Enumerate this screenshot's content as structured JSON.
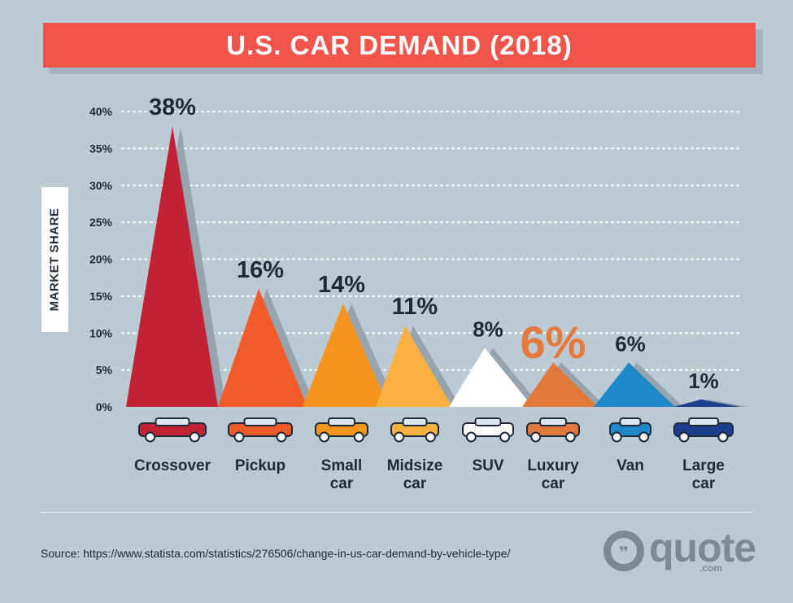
{
  "title": "U.S. CAR DEMAND (2018)",
  "chart_data": {
    "type": "area",
    "title": "U.S. CAR DEMAND (2018)",
    "ylabel": "MARKET SHARE",
    "ylim": [
      0,
      40
    ],
    "yticks": [
      "0%",
      "5%",
      "10%",
      "15%",
      "20%",
      "25%",
      "30%",
      "35%",
      "40%"
    ],
    "grid": true,
    "categories": [
      "Crossover",
      "Pickup",
      "Small car",
      "Midsize car",
      "SUV",
      "Luxury car",
      "Van",
      "Large car"
    ],
    "category_lines": [
      [
        "Crossover"
      ],
      [
        "Pickup"
      ],
      [
        "Small",
        "car"
      ],
      [
        "Midsize",
        "car"
      ],
      [
        "SUV"
      ],
      [
        "Luxury",
        "car"
      ],
      [
        "Van"
      ],
      [
        "Large",
        "car"
      ]
    ],
    "values": [
      38,
      16,
      14,
      11,
      8,
      6,
      6,
      1
    ],
    "data_labels": [
      "38%",
      "16%",
      "14%",
      "11%",
      "8%",
      "6%",
      "6%",
      "1%"
    ],
    "colors": [
      "#c12334",
      "#f15a29",
      "#f7941d",
      "#fbb040",
      "#ffffff",
      "#e0793a",
      "#1e88c8",
      "#1c3f8c"
    ],
    "highlight_label_color": "#e57a3c"
  },
  "icons": [
    "crossover-car-icon",
    "pickup-truck-icon",
    "small-car-icon",
    "midsize-car-icon",
    "suv-sports-car-icon",
    "luxury-car-icon",
    "van-icon",
    "large-car-limo-icon"
  ],
  "source": "Source: https://www.statista.com/statistics/276506/change-in-us-car-demand-by-vehicle-type/",
  "logo": {
    "word": "quote",
    "suffix": ".com"
  }
}
